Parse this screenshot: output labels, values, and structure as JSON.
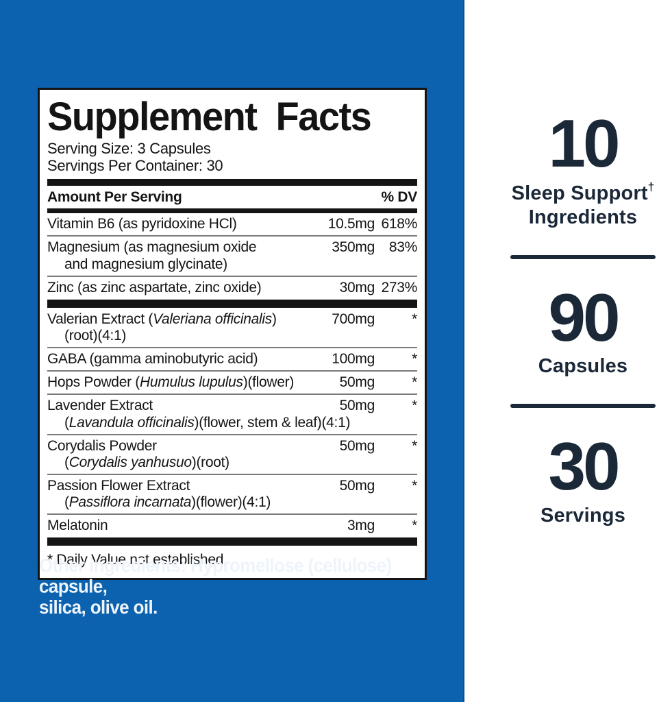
{
  "colors": {
    "background_blue": "#0c62ae",
    "panel_white": "#ffffff",
    "navy_text": "#1b2838",
    "label_black": "#141414"
  },
  "supplement_facts": {
    "title": "Supplement Facts",
    "serving_size": "Serving Size: 3 Capsules",
    "servings_per_container": "Servings Per Container: 30",
    "header": {
      "left": "Amount Per Serving",
      "right": "% DV"
    },
    "rows": [
      {
        "line1": [
          {
            "t": "Vitamin B6 (as pyridoxine HCl)",
            "i": false
          }
        ],
        "line2": null,
        "amount": "10.5mg",
        "dv": "618%",
        "sep": "thin"
      },
      {
        "line1": [
          {
            "t": "Magnesium (as magnesium oxide",
            "i": false
          }
        ],
        "line2": [
          {
            "t": "and magnesium glycinate)",
            "i": false
          }
        ],
        "amount": "350mg",
        "dv": "83%",
        "sep": "thin"
      },
      {
        "line1": [
          {
            "t": "Zinc (as zinc aspartate, zinc oxide)",
            "i": false
          }
        ],
        "line2": null,
        "amount": "30mg",
        "dv": "273%",
        "sep": "thick"
      },
      {
        "line1": [
          {
            "t": "Valerian Extract (",
            "i": false
          },
          {
            "t": "Valeriana officinalis",
            "i": true
          },
          {
            "t": ")",
            "i": false
          }
        ],
        "line2": [
          {
            "t": "(root)(4:1)",
            "i": false
          }
        ],
        "amount": "700mg",
        "dv": "*",
        "sep": "thin"
      },
      {
        "line1": [
          {
            "t": "GABA (gamma aminobutyric acid)",
            "i": false
          }
        ],
        "line2": null,
        "amount": "100mg",
        "dv": "*",
        "sep": "thin"
      },
      {
        "line1": [
          {
            "t": "Hops Powder (",
            "i": false
          },
          {
            "t": "Humulus lupulus",
            "i": true
          },
          {
            "t": ")(flower)",
            "i": false
          }
        ],
        "line2": null,
        "amount": "50mg",
        "dv": "*",
        "sep": "thin"
      },
      {
        "line1": [
          {
            "t": "Lavender Extract",
            "i": false
          }
        ],
        "line2": [
          {
            "t": "(",
            "i": false
          },
          {
            "t": "Lavandula officinalis",
            "i": true
          },
          {
            "t": ")(flower, stem & leaf)(4:1)",
            "i": false
          }
        ],
        "amount": "50mg",
        "dv": "*",
        "sep": "thin"
      },
      {
        "line1": [
          {
            "t": "Corydalis Powder",
            "i": false
          }
        ],
        "line2": [
          {
            "t": "(",
            "i": false
          },
          {
            "t": "Corydalis yanhusuo",
            "i": true
          },
          {
            "t": ")(root)",
            "i": false
          }
        ],
        "amount": "50mg",
        "dv": "*",
        "sep": "thin"
      },
      {
        "line1": [
          {
            "t": "Passion Flower Extract",
            "i": false
          }
        ],
        "line2": [
          {
            "t": "(",
            "i": false
          },
          {
            "t": "Passiflora incarnata",
            "i": true
          },
          {
            "t": ")(flower)(4:1)",
            "i": false
          }
        ],
        "amount": "50mg",
        "dv": "*",
        "sep": "thin"
      },
      {
        "line1": [
          {
            "t": "Melatonin",
            "i": false
          }
        ],
        "line2": null,
        "amount": "3mg",
        "dv": "*",
        "sep": "thick"
      }
    ],
    "footnote": "* Daily Value not established."
  },
  "other_ingredients": {
    "line1": "Other ingredients: Hypromellose (cellulose) capsule,",
    "line2": "silica, olive oil."
  },
  "right_panel": {
    "stats": [
      {
        "number": "10",
        "label_line1": "Sleep Support",
        "dagger": "†",
        "label_line2": "Ingredients"
      },
      {
        "number": "90",
        "label_line1": "Capsules"
      },
      {
        "number": "30",
        "label_line1": "Servings"
      }
    ]
  }
}
